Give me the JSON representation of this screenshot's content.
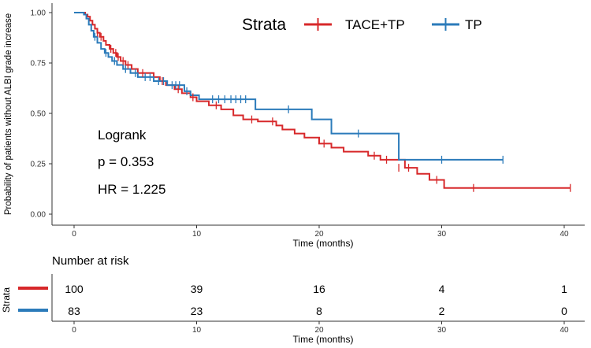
{
  "chart_data": {
    "type": "line",
    "subtype": "kaplan-meier",
    "ylabel": "Probability of patients without ALBI grade increase",
    "xlabel": "Time (months)",
    "xlim": [
      0,
      40.5
    ],
    "ylim": [
      0,
      1
    ],
    "x_ticks": [
      "0",
      "10",
      "20",
      "30",
      "40"
    ],
    "y_ticks": [
      "0.00",
      "0.25",
      "0.50",
      "0.75",
      "1.00"
    ],
    "grid": false,
    "legend": {
      "title": "Strata",
      "position": "top-right"
    },
    "series": [
      {
        "name": "TACE+TP",
        "color": "#d7282a",
        "steps": [
          [
            0,
            1.0
          ],
          [
            0.9,
            0.99
          ],
          [
            1.1,
            0.98
          ],
          [
            1.3,
            0.96
          ],
          [
            1.5,
            0.94
          ],
          [
            1.7,
            0.92
          ],
          [
            1.9,
            0.9
          ],
          [
            2.1,
            0.88
          ],
          [
            2.4,
            0.86
          ],
          [
            2.6,
            0.84
          ],
          [
            2.9,
            0.82
          ],
          [
            3.2,
            0.8
          ],
          [
            3.5,
            0.78
          ],
          [
            3.8,
            0.76
          ],
          [
            4.2,
            0.74
          ],
          [
            4.7,
            0.72
          ],
          [
            5.2,
            0.7
          ],
          [
            6.5,
            0.68
          ],
          [
            7.0,
            0.66
          ],
          [
            7.5,
            0.64
          ],
          [
            8.2,
            0.62
          ],
          [
            8.8,
            0.6
          ],
          [
            9.5,
            0.58
          ],
          [
            10.0,
            0.56
          ],
          [
            11.0,
            0.54
          ],
          [
            12.0,
            0.52
          ],
          [
            13.0,
            0.49
          ],
          [
            13.8,
            0.47
          ],
          [
            15.0,
            0.46
          ],
          [
            16.5,
            0.44
          ],
          [
            17.0,
            0.42
          ],
          [
            18.0,
            0.4
          ],
          [
            18.8,
            0.38
          ],
          [
            20.0,
            0.35
          ],
          [
            21.0,
            0.33
          ],
          [
            22.0,
            0.31
          ],
          [
            24.0,
            0.29
          ],
          [
            25.0,
            0.27
          ],
          [
            27.0,
            0.23
          ],
          [
            28.0,
            0.2
          ],
          [
            29.0,
            0.17
          ],
          [
            30.2,
            0.13
          ]
        ],
        "end_x": 40.5,
        "censor": [
          [
            1.9,
            0.9
          ],
          [
            2.2,
            0.88
          ],
          [
            3.0,
            0.82
          ],
          [
            3.4,
            0.8
          ],
          [
            3.6,
            0.78
          ],
          [
            4.0,
            0.76
          ],
          [
            4.4,
            0.74
          ],
          [
            5.6,
            0.7
          ],
          [
            7.2,
            0.66
          ],
          [
            8.5,
            0.62
          ],
          [
            9.7,
            0.58
          ],
          [
            11.6,
            0.54
          ],
          [
            14.5,
            0.47
          ],
          [
            16.2,
            0.46
          ],
          [
            20.4,
            0.35
          ],
          [
            24.5,
            0.29
          ],
          [
            25.5,
            0.27
          ],
          [
            26.5,
            0.23
          ],
          [
            27.3,
            0.23
          ],
          [
            29.6,
            0.17
          ],
          [
            32.6,
            0.13
          ],
          [
            40.5,
            0.13
          ]
        ]
      },
      {
        "name": "TP",
        "color": "#2b7bba",
        "steps": [
          [
            0,
            1.0
          ],
          [
            0.8,
            0.99
          ],
          [
            1.0,
            0.97
          ],
          [
            1.2,
            0.94
          ],
          [
            1.4,
            0.91
          ],
          [
            1.6,
            0.88
          ],
          [
            1.9,
            0.85
          ],
          [
            2.2,
            0.82
          ],
          [
            2.5,
            0.8
          ],
          [
            2.8,
            0.78
          ],
          [
            3.1,
            0.76
          ],
          [
            3.5,
            0.74
          ],
          [
            4.0,
            0.72
          ],
          [
            4.6,
            0.7
          ],
          [
            5.2,
            0.68
          ],
          [
            6.5,
            0.66
          ],
          [
            7.6,
            0.64
          ],
          [
            9.0,
            0.61
          ],
          [
            9.5,
            0.59
          ],
          [
            10.2,
            0.57
          ],
          [
            14.8,
            0.52
          ],
          [
            19.4,
            0.47
          ],
          [
            21.0,
            0.4
          ],
          [
            26.5,
            0.27
          ]
        ],
        "end_x": 35.0,
        "censor": [
          [
            1.7,
            0.88
          ],
          [
            2.6,
            0.8
          ],
          [
            3.3,
            0.76
          ],
          [
            4.2,
            0.72
          ],
          [
            5.0,
            0.7
          ],
          [
            5.8,
            0.68
          ],
          [
            6.2,
            0.68
          ],
          [
            6.9,
            0.66
          ],
          [
            7.3,
            0.66
          ],
          [
            8.0,
            0.64
          ],
          [
            8.3,
            0.64
          ],
          [
            8.6,
            0.64
          ],
          [
            9.2,
            0.61
          ],
          [
            11.3,
            0.57
          ],
          [
            11.8,
            0.57
          ],
          [
            12.3,
            0.57
          ],
          [
            12.8,
            0.57
          ],
          [
            13.2,
            0.57
          ],
          [
            13.6,
            0.57
          ],
          [
            14.0,
            0.57
          ],
          [
            17.5,
            0.52
          ],
          [
            23.2,
            0.4
          ],
          [
            30.0,
            0.27
          ],
          [
            35.0,
            0.27
          ]
        ]
      }
    ],
    "annotations": [
      "Logrank",
      "p = 0.353",
      "HR = 1.225"
    ],
    "risk_table": {
      "title": "Number at risk",
      "ylabel": "Strata",
      "xlabel": "Time (months)",
      "times": [
        0,
        10,
        20,
        30,
        40
      ],
      "x_ticks": [
        "0",
        "10",
        "20",
        "30",
        "40"
      ],
      "rows": [
        {
          "name": "TACE+TP",
          "color": "#d7282a",
          "counts": [
            "100",
            "39",
            "16",
            "4",
            "1"
          ]
        },
        {
          "name": "TP",
          "color": "#2b7bba",
          "counts": [
            "83",
            "23",
            "8",
            "2",
            "0"
          ]
        }
      ]
    }
  }
}
